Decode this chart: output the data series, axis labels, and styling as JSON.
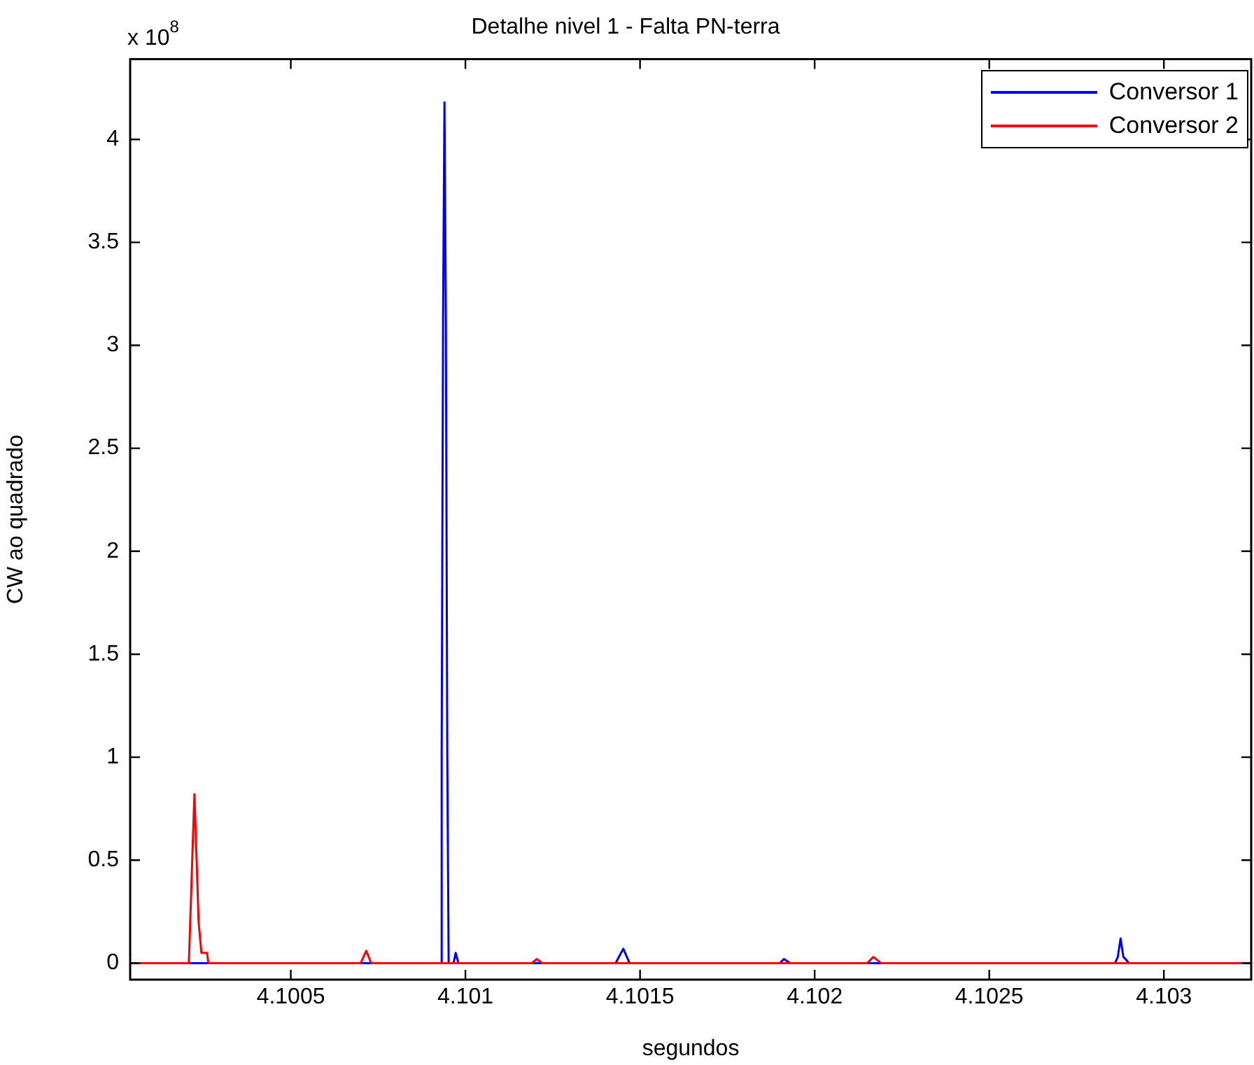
{
  "chart_data": {
    "type": "line",
    "title": "Detalhe nivel 1 - Falta PN-terra",
    "xlabel": "segundos",
    "ylabel": "CW ao quadrado",
    "annotations": [
      "x 10$^{8}$"
    ],
    "xlim": [
      4.10004,
      4.10325
    ],
    "xticks": [
      4.1005,
      4.101,
      4.1015,
      4.102,
      4.1025,
      4.103
    ],
    "ylim": [
      -0.08,
      4.39
    ],
    "yticks": [
      0,
      0.5,
      1,
      1.5,
      2,
      2.5,
      3,
      3.5,
      4
    ],
    "grid": false,
    "legend": "top right",
    "marker": "none",
    "line_style": "solid",
    "series": [
      {
        "name": "Conversor 1",
        "color": "#0000ff",
        "x": [
          4.10004,
          4.10093,
          4.100932,
          4.100936,
          4.10094,
          4.100944,
          4.100948,
          4.100952,
          4.100966,
          4.100972,
          4.10098,
          4.10143,
          4.101452,
          4.10147,
          4.1019,
          4.101912,
          4.10193,
          4.10286,
          4.102868,
          4.102876,
          4.102884,
          4.10289,
          4.1029,
          4.10325
        ],
        "values": [
          0,
          0,
          1.02,
          3.13,
          4.18,
          3.13,
          1.02,
          0,
          0,
          0.05,
          0,
          0,
          0.07,
          0,
          0,
          0.02,
          0,
          0,
          0.03,
          0.12,
          0.03,
          0.02,
          0,
          0
        ]
      },
      {
        "name": "Conversor 2",
        "color": "#ff0000",
        "x": [
          4.10004,
          4.100208,
          4.100212,
          4.10022,
          4.100224,
          4.100228,
          4.100236,
          4.100244,
          4.10026,
          4.100264,
          4.1007,
          4.100716,
          4.10073,
          4.10119,
          4.101204,
          4.10122,
          4.10215,
          4.102168,
          4.10219,
          4.10325
        ],
        "values": [
          0,
          0,
          0.2,
          0.62,
          0.82,
          0.62,
          0.2,
          0.05,
          0.05,
          0,
          0,
          0.06,
          0,
          0,
          0.02,
          0,
          0,
          0.03,
          0,
          0
        ]
      }
    ]
  }
}
